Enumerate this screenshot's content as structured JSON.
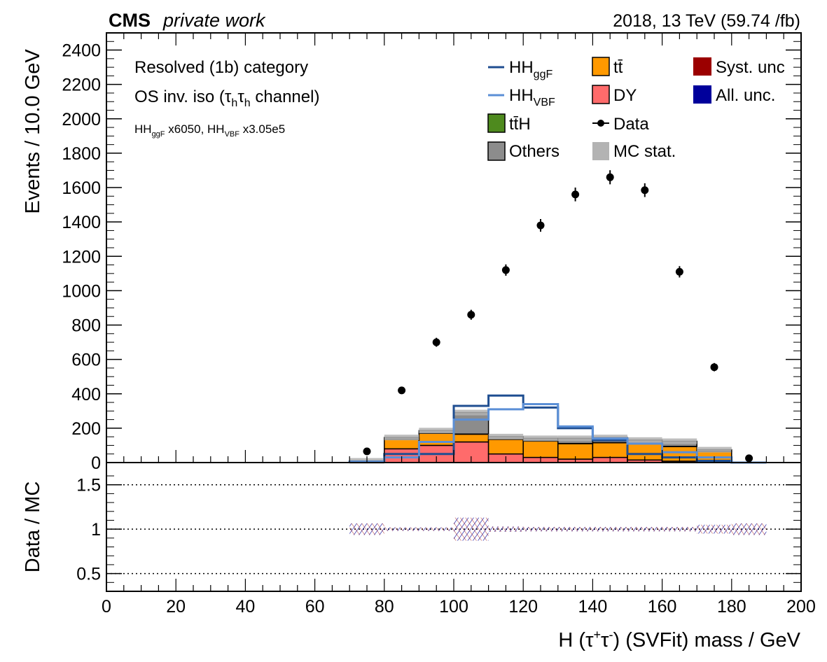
{
  "header": {
    "cms": "CMS",
    "private": "private work",
    "lumi": "2018, 13 TeV (59.74 /fb)"
  },
  "annotations": {
    "category": "Resolved (1b) category",
    "region_pre": "OS inv. iso (",
    "region_tau1": "τ",
    "region_sub1": "h",
    "region_tau2": "τ",
    "region_sub2": "h",
    "region_post": " channel)",
    "scale_ggf_pre": "HH",
    "scale_ggf_sub": "ggF",
    "scale_ggf_post": " x6050,  HH",
    "scale_vbf_sub": "VBF",
    "scale_vbf_post": " x3.05e5"
  },
  "legend": {
    "ggf_main": "HH",
    "ggf_sub": "ggF",
    "vbf_main": "HH",
    "vbf_sub": "VBF",
    "tth": "tt̄H",
    "others": "Others",
    "ttbar": "tt̄",
    "dy": "DY",
    "data": "Data",
    "mcstat": "MC stat.",
    "syst": "Syst. unc",
    "all": "All. unc."
  },
  "axes": {
    "ylabel_main": "Events / 10.0 GeV",
    "ylabel_ratio": "Data / MC",
    "xlabel_pre": "H (",
    "xlabel_tau1": "τ",
    "xlabel_sup1": "+",
    "xlabel_tau2": "τ",
    "xlabel_sup2": "-",
    "xlabel_post": ") (SVFit) mass / GeV"
  },
  "colors": {
    "ggf": "#1f4e91",
    "vbf": "#5b8fd6",
    "tth": "#4e8a1e",
    "others": "#8c8c8c",
    "ttbar": "#ff9900",
    "dy": "#ff6b6b",
    "syst": "#9b0000",
    "all": "#00009b",
    "mcstat": "#b3b3b3"
  },
  "chart_data": {
    "type": "bar",
    "bin_edges": [
      70,
      80,
      90,
      100,
      110,
      120,
      130,
      140,
      150,
      160,
      170,
      180,
      190
    ],
    "xlim": [
      0,
      200
    ],
    "ylim": [
      0,
      2500
    ],
    "xticks": [
      0,
      20,
      40,
      60,
      80,
      100,
      120,
      140,
      160,
      180,
      200
    ],
    "yticks": [
      0,
      200,
      400,
      600,
      800,
      1000,
      1200,
      1400,
      1600,
      1800,
      2000,
      2200,
      2400
    ],
    "stack": [
      {
        "name": "DY",
        "values": [
          5,
          80,
          100,
          120,
          50,
          30,
          20,
          30,
          15,
          8,
          4,
          0
        ]
      },
      {
        "name": "tt̄",
        "values": [
          3,
          55,
          70,
          45,
          85,
          95,
          90,
          85,
          95,
          85,
          60,
          0
        ]
      },
      {
        "name": "tt̄H",
        "values": [
          0,
          1,
          1,
          1,
          1,
          1,
          1,
          1,
          1,
          1,
          1,
          0
        ]
      },
      {
        "name": "Others",
        "values": [
          2,
          10,
          15,
          125,
          15,
          15,
          30,
          30,
          20,
          30,
          10,
          0
        ]
      }
    ],
    "lines": [
      {
        "name": "HH_ggF",
        "values": [
          5,
          50,
          50,
          330,
          390,
          320,
          200,
          130,
          50,
          30,
          10,
          0
        ]
      },
      {
        "name": "HH_VBF",
        "values": [
          5,
          30,
          120,
          250,
          310,
          340,
          210,
          140,
          110,
          60,
          30,
          0
        ]
      }
    ],
    "data_points": {
      "x": [
        75,
        85,
        95,
        105,
        115,
        125,
        135,
        145,
        155,
        165,
        175,
        185
      ],
      "y": [
        65,
        420,
        700,
        860,
        1120,
        1380,
        1560,
        1660,
        1585,
        1110,
        555,
        25
      ],
      "err": [
        8,
        20,
        26,
        29,
        33,
        37,
        40,
        41,
        40,
        33,
        24,
        5
      ]
    },
    "ratio": {
      "ylim": [
        0.3,
        1.75
      ],
      "yticks": [
        0.5,
        1,
        1.5
      ],
      "ytick_labels": [
        "0.5",
        "1",
        "1.5"
      ],
      "gridlines": [
        0.5,
        1,
        1.5
      ],
      "unc_half": [
        0.065,
        0.02,
        0.02,
        0.13,
        0.03,
        0.025,
        0.025,
        0.025,
        0.025,
        0.025,
        0.05,
        0.065
      ]
    }
  }
}
